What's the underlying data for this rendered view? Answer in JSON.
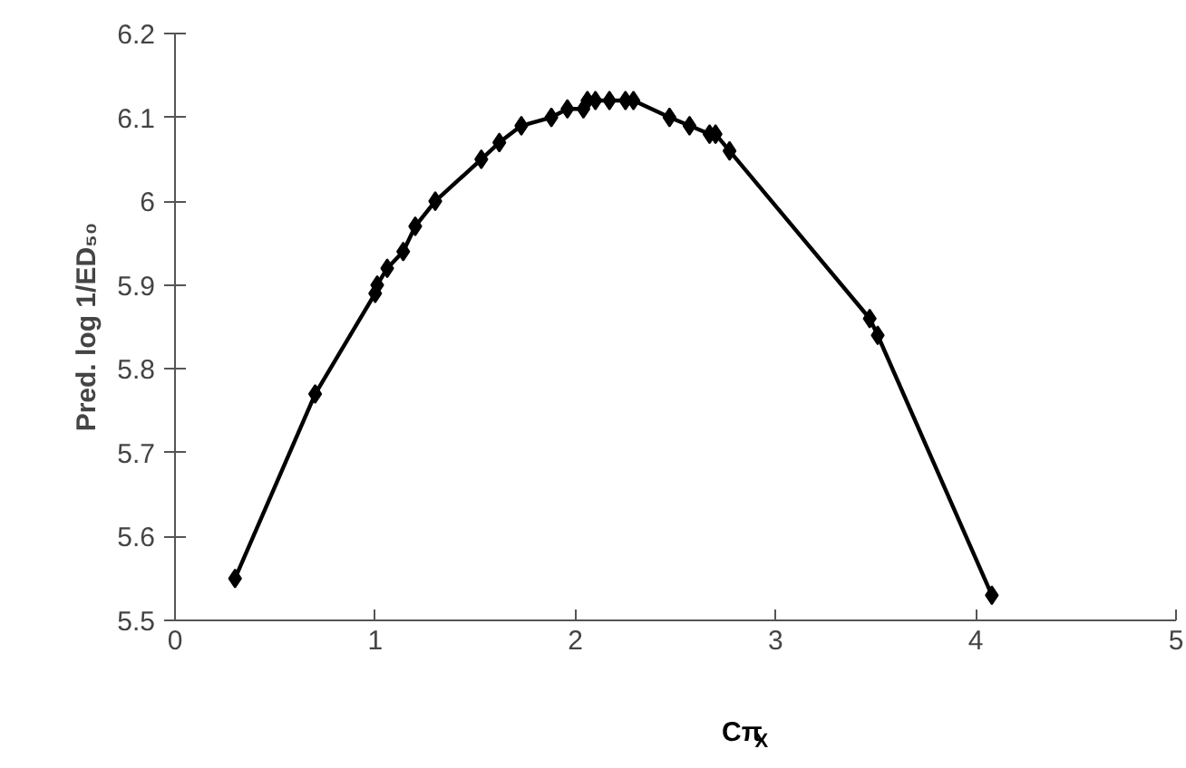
{
  "chart_data": {
    "type": "line",
    "xlabel": "Cπ$_{X}$",
    "ylabel": "Pred. log 1/ED₅₀",
    "x": [
      0.3,
      0.7,
      1.0,
      1.01,
      1.06,
      1.14,
      1.2,
      1.3,
      1.53,
      1.62,
      1.73,
      1.88,
      1.96,
      2.04,
      2.06,
      2.1,
      2.17,
      2.25,
      2.29,
      2.47,
      2.57,
      2.67,
      2.7,
      2.77,
      3.47,
      3.51,
      4.08
    ],
    "series": [
      {
        "color": "#000000",
        "values": [
          5.55,
          5.77,
          5.89,
          5.9,
          5.92,
          5.94,
          5.97,
          6.0,
          6.05,
          6.07,
          6.09,
          6.1,
          6.11,
          6.11,
          6.12,
          6.12,
          6.12,
          6.12,
          6.12,
          6.1,
          6.09,
          6.08,
          6.08,
          6.06,
          5.86,
          5.84,
          5.53
        ]
      }
    ],
    "xlim": [
      0,
      5
    ],
    "xticks": [
      0,
      1,
      2,
      3,
      4,
      5
    ],
    "ylim": [
      5.5,
      6.2
    ],
    "yticks": [
      5.5,
      5.6,
      5.7,
      5.8,
      5.9,
      6,
      6.1,
      6.2
    ],
    "marker": "diamond",
    "line_style": "solid",
    "grid": false
  }
}
